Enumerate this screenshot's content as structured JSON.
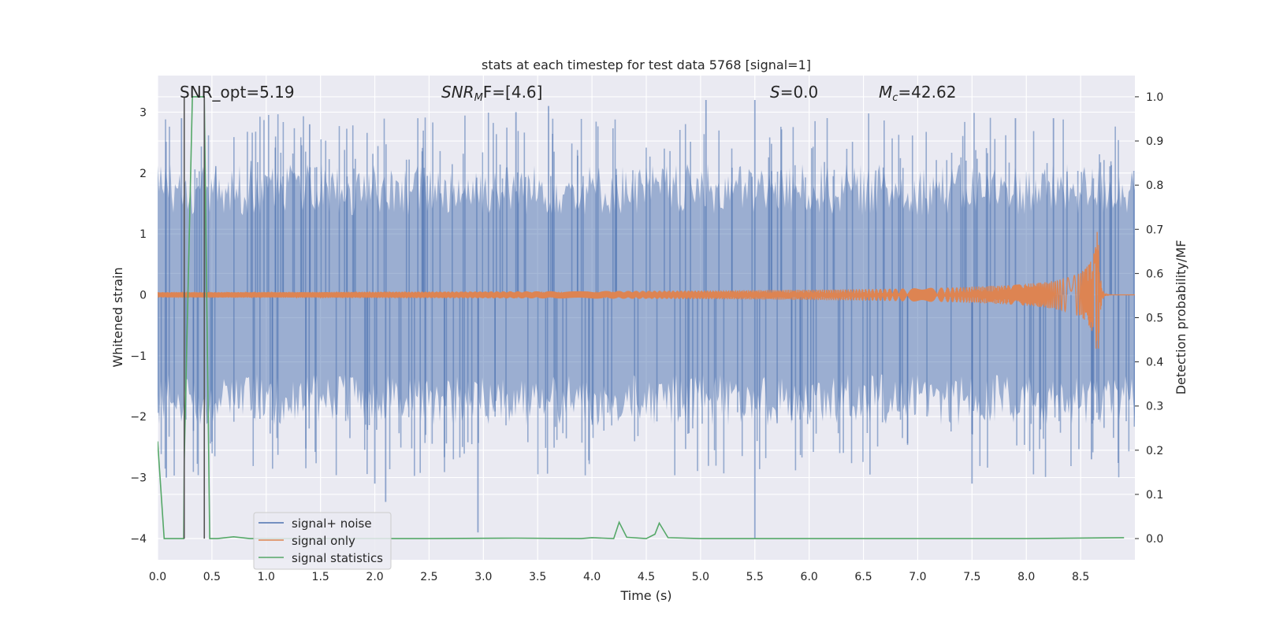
{
  "chart_data": {
    "type": "line",
    "title": "stats at each timestep for test data 5768 [signal=1]",
    "xlabel": "Time (s)",
    "ylabel": "Whitened strain",
    "ylabel_right": "Detection probability/MF",
    "xlim": [
      0,
      9
    ],
    "ylim": [
      -4.35,
      3.6
    ],
    "ylim_right": [
      -0.048,
      1.048
    ],
    "xticks": [
      0.0,
      0.5,
      1.0,
      1.5,
      2.0,
      2.5,
      3.0,
      3.5,
      4.0,
      4.5,
      5.0,
      5.5,
      6.0,
      6.5,
      7.0,
      7.5,
      8.0,
      8.5
    ],
    "yticks": [
      -4,
      -3,
      -2,
      -1,
      0,
      1,
      2,
      3
    ],
    "yticks_right": [
      0.0,
      0.1,
      0.2,
      0.3,
      0.4,
      0.5,
      0.6,
      0.7,
      0.8,
      0.9,
      1.0
    ],
    "grid": true,
    "legend_position": "lower-left",
    "colors": {
      "background": "#eaeaf2",
      "grid": "#ffffff",
      "noise": "#4c72b0",
      "signal": "#dd8452",
      "statistics": "#55a868",
      "vline": "#555555"
    },
    "annotations": {
      "snr_opt": "SNR_opt=5.19",
      "snr_mf_label": "SNR",
      "snr_mf_sub": "M",
      "snr_mf_rest": "F=[4.6]",
      "s_label": "S",
      "s_value": "=0.0",
      "mc_label": "M",
      "mc_sub": "c",
      "mc_value": "=42.62"
    },
    "vertical_lines_x": [
      0.245,
      0.43
    ],
    "noise_extremes": [
      {
        "x": 0.08,
        "y": -3.0
      },
      {
        "x": 0.22,
        "y": 2.9
      },
      {
        "x": 1.4,
        "y": 2.8
      },
      {
        "x": 2.0,
        "y": -3.1
      },
      {
        "x": 2.1,
        "y": -3.4
      },
      {
        "x": 2.95,
        "y": -3.9
      },
      {
        "x": 3.3,
        "y": 3.0
      },
      {
        "x": 3.6,
        "y": 3.1
      },
      {
        "x": 5.05,
        "y": 3.2
      },
      {
        "x": 5.5,
        "y": -4.0
      },
      {
        "x": 5.5,
        "y": 3.2
      },
      {
        "x": 7.5,
        "y": -3.1
      },
      {
        "x": 7.9,
        "y": 2.9
      },
      {
        "x": 8.25,
        "y": 2.9
      },
      {
        "x": 8.6,
        "y": -2.7
      }
    ],
    "signal_chirp": {
      "t_merge": 8.66,
      "peak_amplitude": 1.25
    },
    "statistics_series": {
      "name": "signal statistics",
      "x": [
        0.0,
        0.06,
        0.24,
        0.245,
        0.32,
        0.43,
        0.48,
        0.55,
        0.7,
        0.85,
        1.5,
        2.5,
        3.3,
        3.9,
        4.0,
        4.2,
        4.25,
        4.32,
        4.5,
        4.58,
        4.62,
        4.7,
        5.0,
        6.0,
        7.0,
        8.0,
        8.9
      ],
      "y": [
        0.22,
        0.0,
        0.0,
        0.18,
        1.0,
        1.0,
        0.0,
        0.0,
        0.004,
        0.0,
        0.0,
        0.0,
        0.001,
        0.0,
        0.002,
        0.0,
        0.037,
        0.003,
        0.0,
        0.01,
        0.035,
        0.002,
        0.0,
        0.0,
        0.0,
        0.0,
        0.002
      ]
    },
    "legend": [
      {
        "label": "signal+ noise",
        "color": "#4c72b0"
      },
      {
        "label": "signal only",
        "color": "#dd8452"
      },
      {
        "label": "signal statistics",
        "color": "#55a868"
      }
    ]
  }
}
